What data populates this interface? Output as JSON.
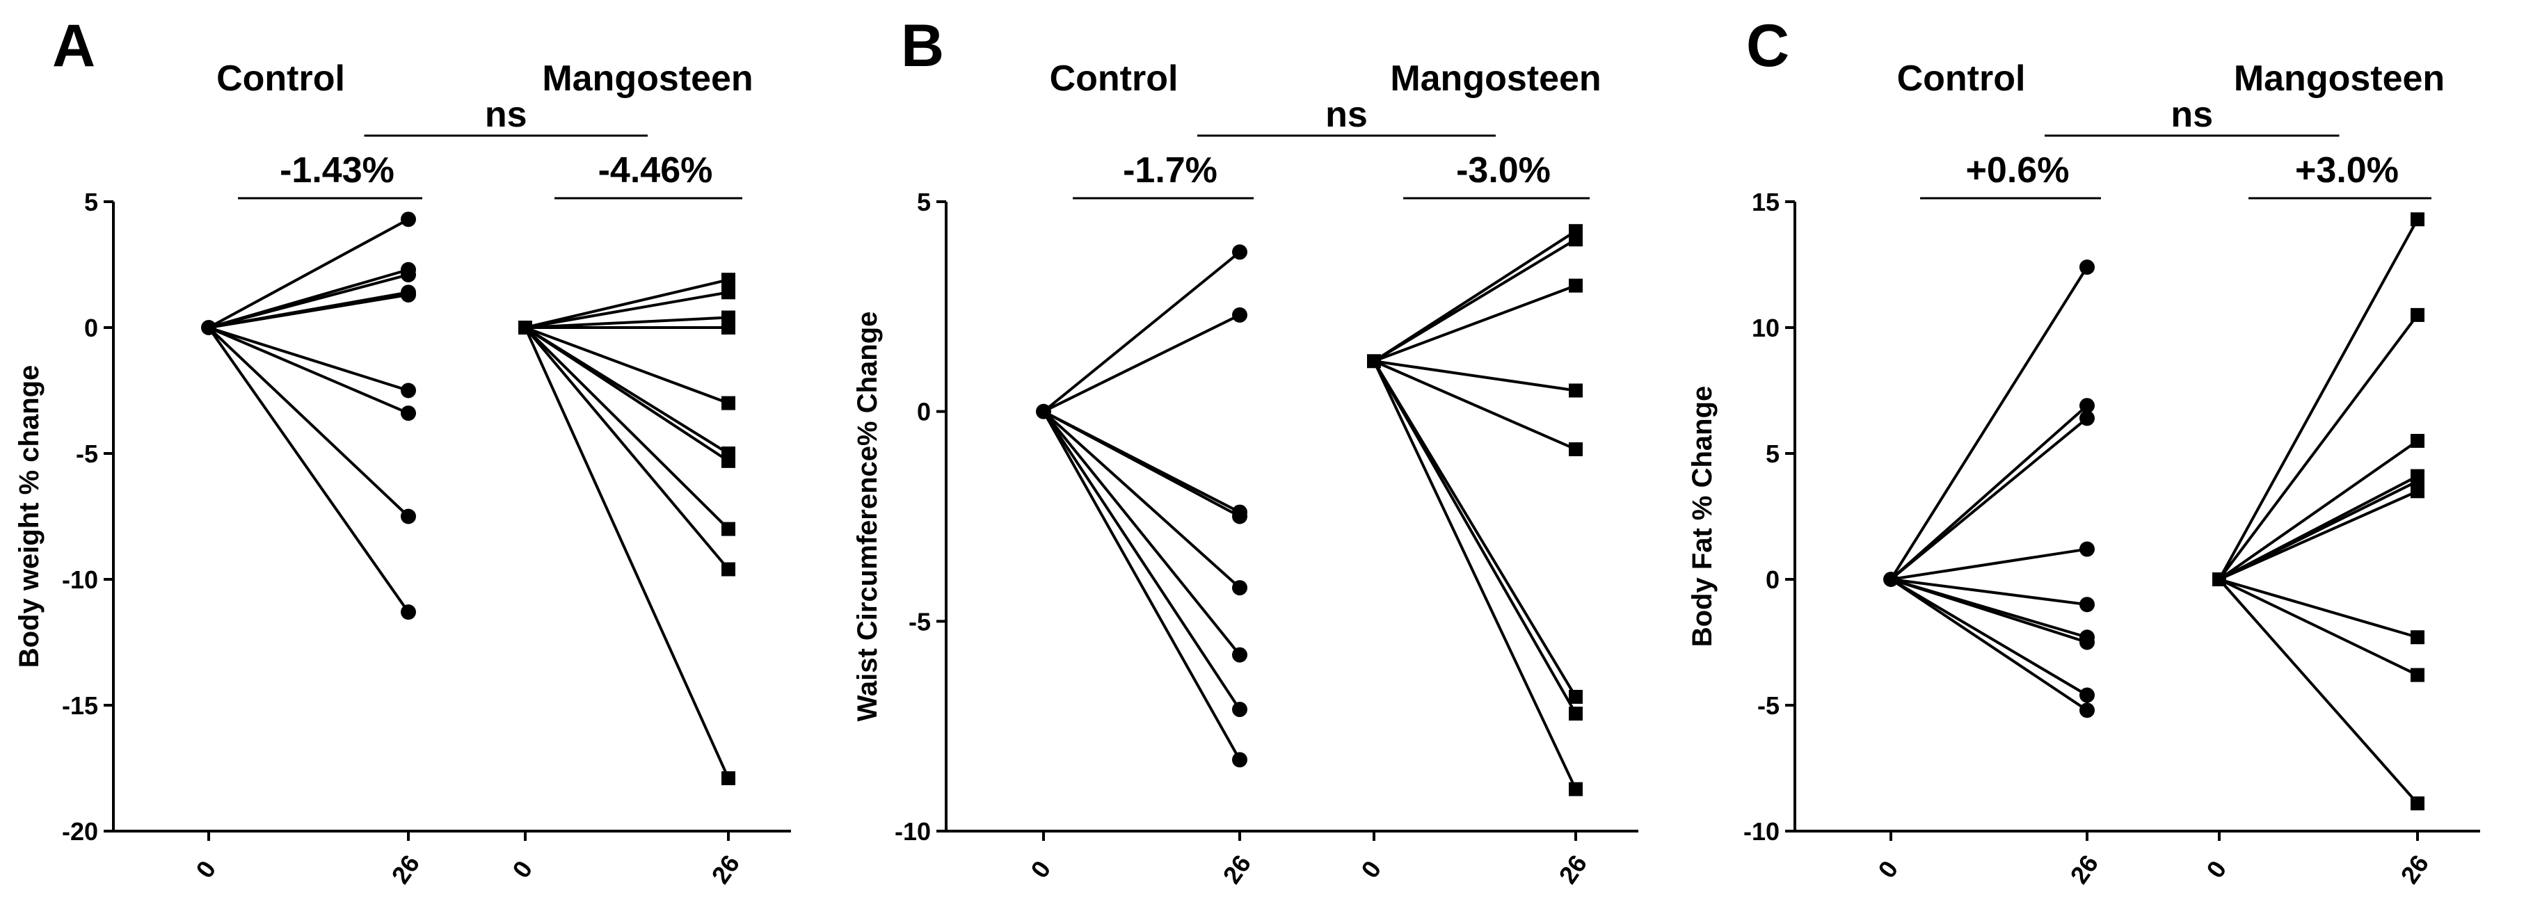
{
  "chart_data": [
    {
      "type": "line",
      "panel": "A",
      "ylabel": "Body weight % change",
      "xlabel": "",
      "ylim": [
        -20,
        5
      ],
      "yticks": [
        5,
        0,
        -5,
        -10,
        -15,
        -20
      ],
      "groups": [
        {
          "name": "Control",
          "marker": "circle",
          "x": [
            "0",
            "26"
          ],
          "start": 0,
          "end_values": [
            4.3,
            2.3,
            2.1,
            1.4,
            1.3,
            -2.5,
            -3.4,
            -7.5,
            -11.3
          ],
          "change_label": "-1.43%"
        },
        {
          "name": "Mangosteen",
          "marker": "square",
          "x": [
            "0",
            "26"
          ],
          "start": 0,
          "end_values": [
            1.9,
            1.4,
            0.4,
            0.0,
            -3.0,
            -5.0,
            -5.3,
            -8.0,
            -9.6,
            -17.9
          ],
          "change_label": "-4.46%"
        }
      ],
      "comparison_label": "ns"
    },
    {
      "type": "line",
      "panel": "B",
      "ylabel": "Waist Circumference%  Change",
      "xlabel": "",
      "ylim": [
        -10,
        5
      ],
      "yticks": [
        5,
        0,
        -5,
        -10
      ],
      "groups": [
        {
          "name": "Control",
          "marker": "circle",
          "x": [
            "0",
            "26"
          ],
          "start": 0,
          "end_values": [
            3.8,
            2.3,
            -2.4,
            -2.5,
            -4.2,
            -5.8,
            -7.1,
            -8.3
          ],
          "change_label": "-1.7%"
        },
        {
          "name": "Mangosteen",
          "marker": "square",
          "x": [
            "0",
            "26"
          ],
          "start": 1.2,
          "end_values": [
            4.3,
            4.1,
            3.0,
            0.5,
            -0.9,
            -6.8,
            -7.2,
            -9.0
          ],
          "change_label": "-3.0%"
        }
      ],
      "comparison_label": "ns"
    },
    {
      "type": "line",
      "panel": "C",
      "ylabel": "Body Fat % Change",
      "xlabel": "",
      "ylim": [
        -10,
        15
      ],
      "yticks": [
        15,
        10,
        5,
        0,
        -5,
        -10
      ],
      "groups": [
        {
          "name": "Control",
          "marker": "circle",
          "x": [
            "0",
            "26"
          ],
          "start": 0,
          "end_values": [
            12.4,
            6.9,
            6.4,
            1.2,
            -1.0,
            -2.3,
            -2.5,
            -4.6,
            -5.2
          ],
          "change_label": "+0.6%"
        },
        {
          "name": "Mangosteen",
          "marker": "square",
          "x": [
            "0",
            "26"
          ],
          "start": 0,
          "end_values": [
            14.3,
            10.5,
            5.5,
            4.1,
            3.9,
            3.5,
            -2.3,
            -3.8,
            -8.9
          ],
          "change_label": "+3.0%"
        }
      ],
      "comparison_label": "ns"
    }
  ]
}
